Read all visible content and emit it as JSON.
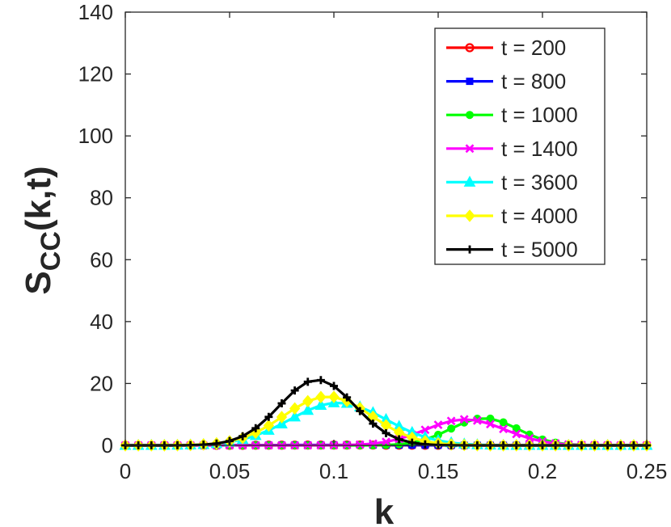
{
  "chart_data": {
    "type": "line",
    "xlabel": "k",
    "ylabel_main": "S",
    "ylabel_sub": "CC",
    "ylabel_tail": "(k,t)",
    "xlim": [
      0,
      0.25
    ],
    "ylim": [
      0,
      140
    ],
    "xticks": [
      0,
      0.05,
      0.1,
      0.15,
      0.2,
      0.25
    ],
    "xtick_labels": [
      "0",
      "0.05",
      "0.1",
      "0.15",
      "0.2",
      "0.25"
    ],
    "yticks": [
      0,
      20,
      40,
      60,
      80,
      100,
      120,
      140
    ],
    "ytick_labels": [
      "0",
      "20",
      "40",
      "60",
      "80",
      "100",
      "120",
      "140"
    ],
    "grid": false,
    "legend_position": "top-right",
    "series": [
      {
        "name": "t = 200",
        "color": "#ff0000",
        "marker": "circle-open",
        "peak_k": 0.1,
        "peak_val": 0.1,
        "width": 0.03
      },
      {
        "name": "t = 800",
        "color": "#0000ff",
        "marker": "square",
        "peak_k": 0.1,
        "peak_val": 0.15,
        "width": 0.03
      },
      {
        "name": "t = 1000",
        "color": "#00ff00",
        "marker": "circle",
        "peak_k": 0.172,
        "peak_val": 8.8,
        "width": 0.016
      },
      {
        "name": "t = 1400",
        "color": "#ff00ff",
        "marker": "x",
        "peak_k": 0.163,
        "peak_val": 8.4,
        "width": 0.019
      },
      {
        "name": "t = 3600",
        "color": "#00ffff",
        "marker": "triangle",
        "peak_k": 0.102,
        "peak_val": 13.8,
        "width": 0.023
      },
      {
        "name": "t = 4000",
        "color": "#ffff00",
        "marker": "diamond",
        "peak_k": 0.097,
        "peak_val": 15.8,
        "width": 0.021
      },
      {
        "name": "t = 5000",
        "color": "#000000",
        "marker": "plus",
        "peak_k": 0.092,
        "peak_val": 21.2,
        "width": 0.018
      }
    ],
    "k_samples": {
      "start": 0,
      "step": 0.00625,
      "count": 41
    }
  }
}
